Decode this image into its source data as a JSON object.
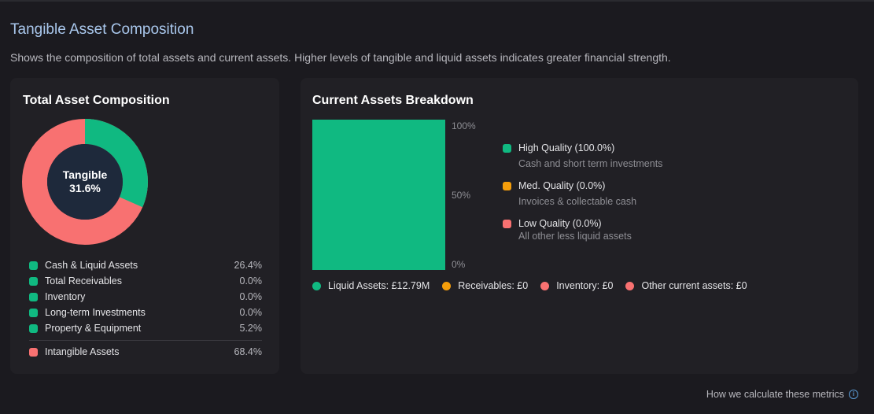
{
  "page": {
    "title": "Tangible Asset Composition",
    "description": "Shows the composition of total assets and current assets. Higher levels of tangible and liquid assets indicates greater financial strength."
  },
  "colors": {
    "green": "#10b981",
    "red": "#f87171",
    "orange": "#f59e0b",
    "donut_center": "#1e293b"
  },
  "total_assets": {
    "title": "Total Asset Composition",
    "center_label": "Tangible",
    "center_value": "31.6%",
    "tangible_fraction": 0.316,
    "items": [
      {
        "label": "Cash & Liquid Assets",
        "value": "26.4%",
        "color": "#10b981"
      },
      {
        "label": "Total Receivables",
        "value": "0.0%",
        "color": "#10b981"
      },
      {
        "label": "Inventory",
        "value": "0.0%",
        "color": "#10b981"
      },
      {
        "label": "Long-term Investments",
        "value": "0.0%",
        "color": "#10b981"
      },
      {
        "label": "Property & Equipment",
        "value": "5.2%",
        "color": "#10b981"
      }
    ],
    "intangible": {
      "label": "Intangible Assets",
      "value": "68.4%",
      "color": "#f87171"
    }
  },
  "current_assets": {
    "title": "Current Assets Breakdown",
    "bar_fraction": 1.0,
    "ticks": [
      "100%",
      "50%",
      "0%"
    ],
    "quality": [
      {
        "label": "High Quality (100.0%)",
        "desc": "Cash and short term investments",
        "color": "#10b981"
      },
      {
        "label": "Med. Quality (0.0%)",
        "desc": "Invoices & collectable cash",
        "color": "#f59e0b"
      },
      {
        "label": "Low Quality (0.0%)",
        "desc": "All other less liquid assets",
        "color": "#f87171"
      }
    ],
    "legend": [
      {
        "label": "Liquid Assets: £12.79M",
        "color": "#10b981"
      },
      {
        "label": "Receivables: £0",
        "color": "#f59e0b"
      },
      {
        "label": "Inventory: £0",
        "color": "#f87171"
      },
      {
        "label": "Other current assets: £0",
        "color": "#f87171"
      }
    ]
  },
  "footer": {
    "link_text": "How we calculate these metrics",
    "icon": "info-icon"
  }
}
